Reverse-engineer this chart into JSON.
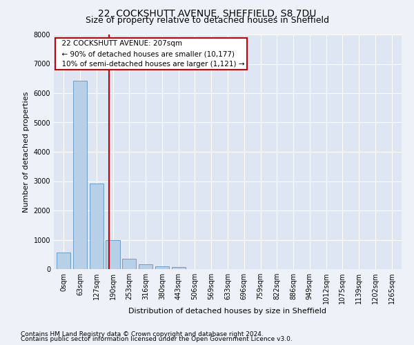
{
  "title": "22, COCKSHUTT AVENUE, SHEFFIELD, S8 7DU",
  "subtitle": "Size of property relative to detached houses in Sheffield",
  "xlabel": "Distribution of detached houses by size in Sheffield",
  "ylabel": "Number of detached properties",
  "bar_labels": [
    "0sqm",
    "63sqm",
    "127sqm",
    "190sqm",
    "253sqm",
    "316sqm",
    "380sqm",
    "443sqm",
    "506sqm",
    "569sqm",
    "633sqm",
    "696sqm",
    "759sqm",
    "822sqm",
    "886sqm",
    "949sqm",
    "1012sqm",
    "1075sqm",
    "1139sqm",
    "1202sqm",
    "1265sqm"
  ],
  "bar_values": [
    570,
    6430,
    2920,
    990,
    360,
    160,
    95,
    80,
    0,
    0,
    0,
    0,
    0,
    0,
    0,
    0,
    0,
    0,
    0,
    0,
    0
  ],
  "bar_color": "#b8cfe8",
  "bar_edge_color": "#6a9ec8",
  "ylim": [
    0,
    8000
  ],
  "yticks": [
    0,
    1000,
    2000,
    3000,
    4000,
    5000,
    6000,
    7000,
    8000
  ],
  "annotation_box_text": "  22 COCKSHUTT AVENUE: 207sqm\n  ← 90% of detached houses are smaller (10,177)\n  10% of semi-detached houses are larger (1,121) →",
  "footer_line1": "Contains HM Land Registry data © Crown copyright and database right 2024.",
  "footer_line2": "Contains public sector information licensed under the Open Government Licence v3.0.",
  "bg_color": "#eef2f8",
  "plot_bg_color": "#dde6f2",
  "grid_color": "#ffffff",
  "red_line_color": "#cc0000",
  "title_fontsize": 10,
  "subtitle_fontsize": 9,
  "axis_label_fontsize": 8,
  "tick_fontsize": 7,
  "annotation_fontsize": 7.5,
  "footer_fontsize": 6.5
}
